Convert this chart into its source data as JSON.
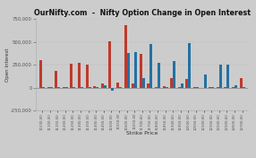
{
  "title": "OurNifty.com  -  Nifty Option Change in Open Interest",
  "xlabel": "Strike Price",
  "ylabel": "Open Interest",
  "background_color": "#cccccc",
  "ylim": [
    -250000,
    750000
  ],
  "yticks": [
    -250000,
    0,
    250000,
    500000,
    750000
  ],
  "strikes": [
    "11000.00",
    "11100.00",
    "11150.00",
    "11200.00",
    "11250.00",
    "11300.00",
    "11350.00",
    "11400.00",
    "11450.00",
    "11500.00",
    "11550.00",
    "11600.00",
    "11650.00",
    "11700.00",
    "11750.00",
    "11800.00",
    "11850.00",
    "11900.00",
    "11950.00",
    "12000.00",
    "12050.00",
    "12100.00",
    "12150.00",
    "12200.00",
    "12300.00",
    "12500.00",
    "12700.00"
  ],
  "ce_values": [
    300000,
    5000,
    185000,
    10000,
    265000,
    270000,
    250000,
    15000,
    50000,
    510000,
    60000,
    680000,
    50000,
    370000,
    50000,
    10000,
    20000,
    105000,
    10000,
    90000,
    5000,
    0,
    10000,
    10000,
    10000,
    5000,
    100000
  ],
  "pe_values": [
    5000,
    5000,
    5000,
    5000,
    5000,
    5000,
    5000,
    5000,
    25000,
    -30000,
    5000,
    380000,
    390000,
    100000,
    480000,
    275000,
    10000,
    290000,
    50000,
    490000,
    5000,
    140000,
    5000,
    255000,
    250000,
    25000,
    5000
  ],
  "ce_color": "#c0392b",
  "pe_color": "#2471a3",
  "bar_width": 0.35
}
